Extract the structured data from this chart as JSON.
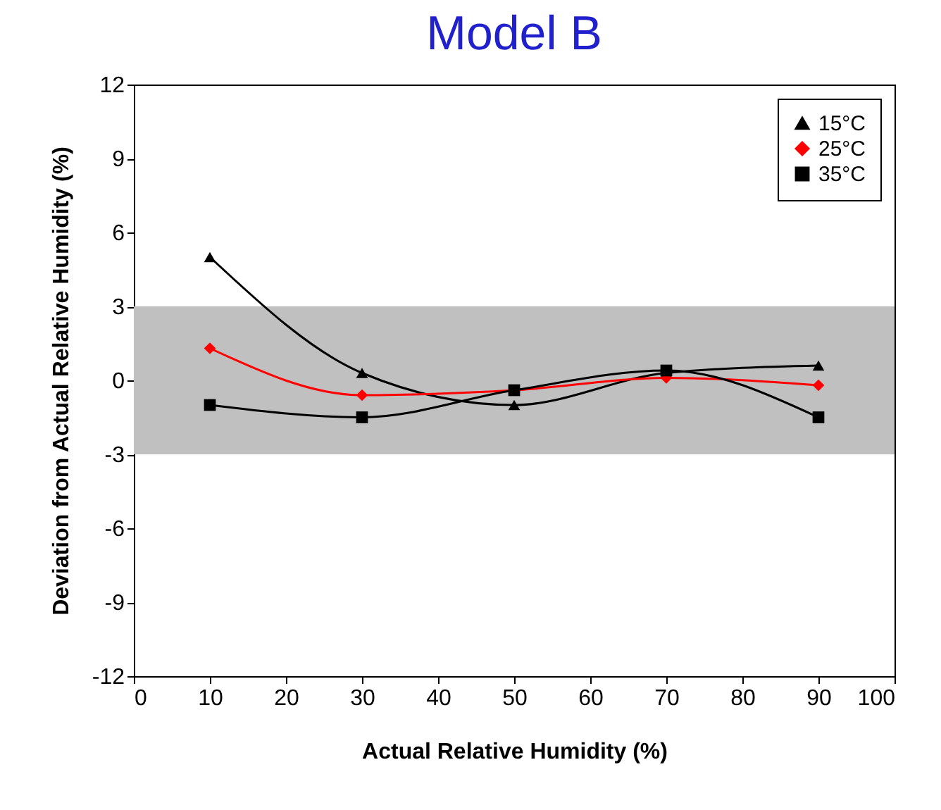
{
  "chart_data": {
    "type": "line",
    "title": "Model B",
    "xlabel": "Actual Relative Humidity (%)",
    "ylabel": "Deviation from Actual Relative Humidity (%)",
    "x": [
      10,
      30,
      50,
      70,
      90
    ],
    "series": [
      {
        "name": "15°C",
        "color": "#000000",
        "marker": "triangle",
        "values": [
          5.0,
          0.3,
          -1.0,
          0.3,
          0.6
        ]
      },
      {
        "name": "25°C",
        "color": "#ff0000",
        "marker": "diamond",
        "values": [
          1.3,
          -0.6,
          -0.4,
          0.1,
          -0.2
        ]
      },
      {
        "name": "35°C",
        "color": "#000000",
        "marker": "square",
        "values": [
          -1.0,
          -1.5,
          -0.4,
          0.4,
          -1.5
        ]
      }
    ],
    "xlim": [
      0,
      100
    ],
    "xticks": [
      0,
      10,
      20,
      30,
      40,
      50,
      60,
      70,
      80,
      90,
      100
    ],
    "ylim": [
      -12,
      12
    ],
    "yticks": [
      -12,
      -9,
      -6,
      -3,
      0,
      3,
      6,
      9,
      12
    ],
    "bands": [
      {
        "axis": "y",
        "from": -3,
        "to": 3,
        "color": "#c0c0c0"
      }
    ],
    "grid": false,
    "legend": "top right",
    "line_style": "solid"
  }
}
